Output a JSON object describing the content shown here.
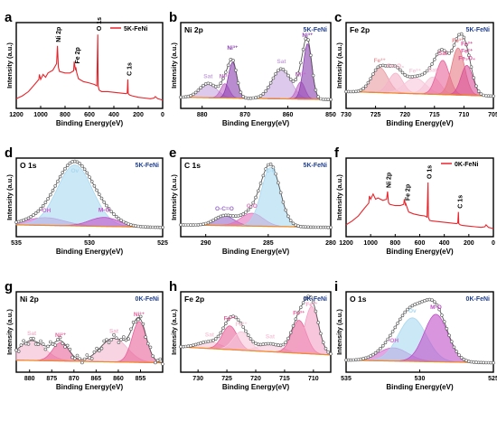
{
  "chart_data": [
    {
      "type": "line",
      "panel_letter": "a",
      "title": "",
      "legend": [
        "5K-FeNi"
      ],
      "legend_position": "top-right",
      "xlabel": "Binding Energy(eV)",
      "ylabel": "Intensity (a.u.)",
      "xlim": [
        1200,
        0
      ],
      "xticks": [
        1200,
        1000,
        800,
        600,
        400,
        200,
        0
      ],
      "series": [
        {
          "name": "5K-FeNi",
          "color": "#e8242b",
          "x": [
            1200,
            1150,
            1100,
            1050,
            1015,
            1010,
            1000,
            980,
            960,
            940,
            900,
            870,
            862,
            855,
            845,
            800,
            760,
            730,
            725,
            715,
            712,
            705,
            690,
            650,
            600,
            560,
            540,
            532,
            529,
            520,
            500,
            450,
            400,
            350,
            300,
            290,
            285,
            282,
            270,
            250,
            200,
            150,
            100,
            70,
            60,
            40,
            20,
            0
          ],
          "y": [
            0.06,
            0.1,
            0.16,
            0.26,
            0.33,
            0.4,
            0.33,
            0.4,
            0.36,
            0.42,
            0.46,
            0.55,
            0.8,
            0.5,
            0.44,
            0.42,
            0.42,
            0.45,
            0.58,
            0.46,
            0.5,
            0.43,
            0.34,
            0.3,
            0.28,
            0.26,
            0.24,
            0.96,
            0.24,
            0.18,
            0.16,
            0.16,
            0.15,
            0.14,
            0.13,
            0.14,
            0.33,
            0.13,
            0.11,
            0.1,
            0.08,
            0.07,
            0.06,
            0.07,
            0.09,
            0.06,
            0.05,
            0.04
          ]
        }
      ],
      "annotations": [
        "Ni 2p",
        "Fe 2p",
        "O 1s",
        "C 1s"
      ]
    },
    {
      "type": "line",
      "panel_letter": "b",
      "title": "Ni 2p",
      "legend": [
        "5K-FeNi"
      ],
      "xlabel": "Binding Energy(eV)",
      "ylabel": "Intensity (a.u.)",
      "xlim": [
        885,
        850
      ],
      "xticks": [
        880,
        870,
        860,
        850
      ],
      "peaks": [
        {
          "label": "Sat",
          "center": 878.6,
          "height": 0.2,
          "width": 2.0,
          "color": "#c7a5dd"
        },
        {
          "label": "Ni²⁺",
          "center": 874.7,
          "height": 0.2,
          "width": 1.0,
          "color": "#c06ac6"
        },
        {
          "label": "Ni³⁺",
          "center": 872.9,
          "height": 0.5,
          "width": 1.0,
          "color": "#8b3fb0"
        },
        {
          "label": "Sat",
          "center": 861.5,
          "height": 0.42,
          "width": 2.2,
          "color": "#c7a5dd"
        },
        {
          "label": "Ni²⁺",
          "center": 857.0,
          "height": 0.24,
          "width": 1.0,
          "color": "#c06ac6"
        },
        {
          "label": "Ni³⁺",
          "center": 855.4,
          "height": 0.78,
          "width": 1.0,
          "color": "#8b3fb0"
        }
      ],
      "annotations": [
        "Sat",
        "Ni²⁺",
        "Ni³⁺",
        "Sat",
        "Ni²⁺",
        "Ni³⁺"
      ]
    },
    {
      "type": "line",
      "panel_letter": "c",
      "title": "Fe 2p",
      "legend": [
        "5K-FeNi"
      ],
      "xlabel": "Binding Energy(eV)",
      "ylabel": "Intensity (a.u.)",
      "xlim": [
        730,
        705
      ],
      "xticks": [
        730,
        725,
        720,
        715,
        710,
        705
      ],
      "peaks": [
        {
          "label": "Fe₃O₄",
          "center": 724.3,
          "height": 0.35,
          "width": 1.4,
          "color": "#e89aa0"
        },
        {
          "label": "Fe³⁺",
          "center": 721.6,
          "height": 0.28,
          "width": 1.2,
          "color": "#f5b3c8"
        },
        {
          "label": "Sat",
          "center": 718.3,
          "height": 0.22,
          "width": 1.8,
          "color": "#f7c6d9"
        },
        {
          "label": "Sat",
          "center": 715.3,
          "height": 0.24,
          "width": 1.3,
          "color": "#f7c6d9"
        },
        {
          "label": "Fe³⁺",
          "center": 713.6,
          "height": 0.48,
          "width": 1.1,
          "color": "#e8629a"
        },
        {
          "label": "Fe₃O₄",
          "center": 711.0,
          "height": 0.66,
          "width": 1.1,
          "color": "#e57a82"
        },
        {
          "label": "Fe²⁺",
          "center": 709.5,
          "height": 0.42,
          "width": 1.0,
          "color": "#d94f98"
        }
      ],
      "annotations": [
        "Fe³⁺",
        "Fe₃O₄",
        "Fe²⁺",
        "Sat",
        "Sat",
        "Fe³⁺",
        "Fe₃O₄",
        "Fe²⁺",
        "Fe³⁺"
      ]
    },
    {
      "type": "line",
      "panel_letter": "d",
      "title": "O 1s",
      "legend": [
        "5K-FeNi"
      ],
      "xlabel": "Binding Energy(eV)",
      "ylabel": "Intensity (a.u.)",
      "xlim": [
        535,
        525
      ],
      "xticks": [
        535,
        530,
        525
      ],
      "peaks": [
        {
          "label": "Ov",
          "center": 533.0,
          "height": 0.12,
          "width": 1.3,
          "color": "#d06ad0"
        },
        {
          "label": "-OH",
          "center": 531.0,
          "height": 0.95,
          "width": 1.2,
          "color": "#a9d8f0"
        },
        {
          "label": "M-O",
          "center": 529.0,
          "height": 0.14,
          "width": 1.0,
          "color": "#c04fc8"
        }
      ],
      "annotations": [
        "-OH",
        "Ov",
        "M-O"
      ]
    },
    {
      "type": "line",
      "panel_letter": "e",
      "title": "C 1s",
      "legend": [
        "5K-FeNi"
      ],
      "xlabel": "Binding Energy(eV)",
      "ylabel": "Intensity (a.u.)",
      "xlim": [
        292,
        280
      ],
      "xticks": [
        290,
        285,
        280
      ],
      "peaks": [
        {
          "label": "O-C=O",
          "center": 288.5,
          "height": 0.15,
          "width": 0.8,
          "color": "#9a68c8"
        },
        {
          "label": "C-O",
          "center": 286.3,
          "height": 0.2,
          "width": 0.9,
          "color": "#e472bd"
        },
        {
          "label": "C-C",
          "center": 284.8,
          "height": 0.92,
          "width": 0.75,
          "color": "#a9d8f0"
        }
      ],
      "annotations": [
        "O-C=O",
        "C-O",
        "C-C"
      ]
    },
    {
      "type": "line",
      "panel_letter": "f",
      "title": "",
      "legend": [
        "0K-FeNi"
      ],
      "legend_position": "top-right",
      "xlabel": "Binding Energy(eV)",
      "ylabel": "Intensity (a.u.)",
      "xlim": [
        1200,
        0
      ],
      "xticks": [
        1200,
        1000,
        800,
        600,
        400,
        200,
        0
      ],
      "series": [
        {
          "name": "0K-FeNi",
          "color": "#e8242b",
          "x": [
            1200,
            1150,
            1100,
            1050,
            1015,
            1010,
            1000,
            980,
            960,
            940,
            900,
            870,
            862,
            855,
            845,
            800,
            760,
            730,
            725,
            715,
            712,
            705,
            690,
            650,
            600,
            560,
            540,
            532,
            529,
            520,
            500,
            450,
            400,
            350,
            300,
            290,
            285,
            282,
            270,
            250,
            200,
            150,
            100,
            70,
            60,
            40,
            20,
            0
          ],
          "y": [
            0.1,
            0.16,
            0.24,
            0.36,
            0.44,
            0.55,
            0.5,
            0.58,
            0.5,
            0.52,
            0.48,
            0.5,
            0.62,
            0.45,
            0.42,
            0.4,
            0.4,
            0.42,
            0.5,
            0.4,
            0.42,
            0.38,
            0.3,
            0.27,
            0.25,
            0.24,
            0.22,
            0.76,
            0.22,
            0.17,
            0.16,
            0.15,
            0.14,
            0.13,
            0.12,
            0.13,
            0.3,
            0.12,
            0.1,
            0.09,
            0.08,
            0.07,
            0.06,
            0.07,
            0.1,
            0.06,
            0.05,
            0.04
          ]
        }
      ],
      "annotations": [
        "Ni 2p",
        "Fe 2p",
        "O 1s",
        "C 1s"
      ]
    },
    {
      "type": "line",
      "panel_letter": "g",
      "title": "Ni 2p",
      "legend": [
        "0K-FeNi"
      ],
      "xlabel": "Binding Energy(eV)",
      "ylabel": "Intensity (a.u.)",
      "xlim": [
        883,
        850
      ],
      "xticks": [
        880,
        875,
        870,
        865,
        860,
        855
      ],
      "peaks": [
        {
          "label": "Sat",
          "center": 879.5,
          "height": 0.3,
          "width": 3.0,
          "color": "#f4b6cf"
        },
        {
          "label": "Ni²⁺",
          "center": 873.0,
          "height": 0.28,
          "width": 1.8,
          "color": "#e8629a"
        },
        {
          "label": "Sat",
          "center": 861.0,
          "height": 0.36,
          "width": 3.0,
          "color": "#f4b6cf"
        },
        {
          "label": "Ni²⁺",
          "center": 855.3,
          "height": 0.62,
          "width": 1.6,
          "color": "#e8629a"
        }
      ],
      "annotations": [
        "Sat",
        "Ni²⁺",
        "Sat",
        "Ni²⁺"
      ]
    },
    {
      "type": "line",
      "panel_letter": "h",
      "title": "Fe 2p",
      "legend": [
        "0K-FeNi"
      ],
      "xlabel": "Binding Energy(eV)",
      "ylabel": "Intensity (a.u.)",
      "xlim": [
        733,
        707
      ],
      "xticks": [
        730,
        725,
        720,
        715,
        710
      ],
      "peaks": [
        {
          "label": "Sat",
          "center": 728.0,
          "height": 0.1,
          "width": 2.0,
          "color": "#f7c6d9"
        },
        {
          "label": "Fe³⁺",
          "center": 724.5,
          "height": 0.36,
          "width": 1.3,
          "color": "#e8629a"
        },
        {
          "label": "Fe²⁺",
          "center": 722.5,
          "height": 0.28,
          "width": 1.4,
          "color": "#f7c6d9"
        },
        {
          "label": "Sat",
          "center": 717.5,
          "height": 0.12,
          "width": 2.0,
          "color": "#f7c6d9"
        },
        {
          "label": "Fe³⁺",
          "center": 712.5,
          "height": 0.5,
          "width": 1.3,
          "color": "#e8629a"
        },
        {
          "label": "Fe²⁺",
          "center": 710.3,
          "height": 0.72,
          "width": 1.2,
          "color": "#f4a0c4"
        }
      ],
      "annotations": [
        "Sat",
        "Fe³⁺",
        "Fe²⁺",
        "Sat",
        "Fe³⁺",
        "Fe²⁺"
      ]
    },
    {
      "type": "line",
      "panel_letter": "i",
      "title": "O 1s",
      "legend": [
        "0K-FeNi"
      ],
      "xlabel": "Binding Energy(eV)",
      "ylabel": "Intensity (a.u.)",
      "xlim": [
        535,
        525
      ],
      "xticks": [
        535,
        530,
        525
      ],
      "peaks": [
        {
          "label": "Ov",
          "center": 531.8,
          "height": 0.2,
          "width": 1.0,
          "color": "#d06ad0"
        },
        {
          "label": "-OH",
          "center": 530.5,
          "height": 0.66,
          "width": 0.95,
          "color": "#a9d8f0"
        },
        {
          "label": "M-O",
          "center": 528.9,
          "height": 0.72,
          "width": 0.8,
          "color": "#c04fc8"
        }
      ],
      "annotations": [
        "-OH",
        "Ov",
        "M-O"
      ]
    }
  ]
}
